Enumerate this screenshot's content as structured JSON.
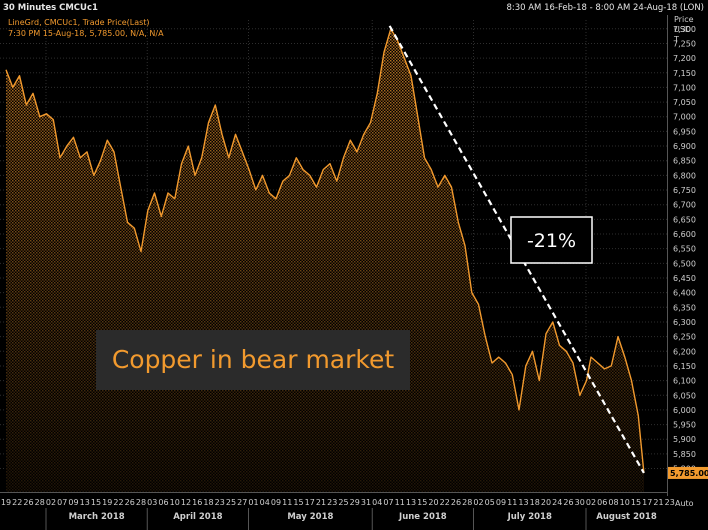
{
  "header": {
    "title": "30 Minutes CMCUc1",
    "range": "8:30 AM 16-Feb-18 - 8:00 AM 24-Aug-18 (LON)"
  },
  "legend": {
    "line1": "LineGrd, CMCUc1, Trade Price(Last)",
    "line2": "7:30 PM 15-Aug-18, 5,785.00, N/A, N/A"
  },
  "axis": {
    "price_title_1": "Price",
    "price_title_2": "USD",
    "price_title_3": "T",
    "auto_label": "Auto"
  },
  "colors": {
    "background": "#000000",
    "line": "#f29a2e",
    "grid": "#2e2e2e",
    "text": "#cfcfcf",
    "box_bg": "#2b2b2b",
    "price_tag_bg": "#f29a2e"
  },
  "chart_data": {
    "type": "area",
    "ylim": [
      5720,
      7330
    ],
    "y_ticks": [
      5800,
      5850,
      5900,
      5950,
      6000,
      6050,
      6100,
      6150,
      6200,
      6250,
      6300,
      6350,
      6400,
      6450,
      6500,
      6550,
      6600,
      6650,
      6700,
      6750,
      6800,
      6850,
      6900,
      6950,
      7000,
      7050,
      7100,
      7150,
      7200,
      7250,
      7300
    ],
    "y_tick_labels": [
      "5,800",
      "5,850",
      "5,900",
      "5,950",
      "6,000",
      "6,050",
      "6,100",
      "6,150",
      "6,200",
      "6,250",
      "6,300",
      "6,350",
      "6,400",
      "6,450",
      "6,500",
      "6,550",
      "6,600",
      "6,650",
      "6,700",
      "6,750",
      "6,800",
      "6,850",
      "6,900",
      "6,950",
      "7,000",
      "7,050",
      "7,100",
      "7,150",
      "7,200",
      "7,250",
      "7,300"
    ],
    "last_price_label": "5,785.00",
    "last_price": 5785,
    "x_day_labels": [
      "19",
      "22",
      "26",
      "28",
      "02",
      "07",
      "09",
      "13",
      "15",
      "19",
      "22",
      "26",
      "28",
      "03",
      "06",
      "10",
      "12",
      "16",
      "18",
      "23",
      "25",
      "27",
      "01",
      "04",
      "09",
      "11",
      "15",
      "17",
      "21",
      "23",
      "25",
      "29",
      "31",
      "04",
      "07",
      "11",
      "13",
      "15",
      "20",
      "22",
      "26",
      "28",
      "02",
      "05",
      "09",
      "11",
      "13",
      "18",
      "20",
      "24",
      "26",
      "30",
      "02",
      "06",
      "08",
      "10",
      "15",
      "17",
      "21",
      "23"
    ],
    "x_months": [
      {
        "label": "March 2018",
        "day_index": 4
      },
      {
        "label": "April 2018",
        "day_index": 13
      },
      {
        "label": "May 2018",
        "day_index": 22
      },
      {
        "label": "June 2018",
        "day_index": 33
      },
      {
        "label": "July 2018",
        "day_index": 42
      },
      {
        "label": "August 2018",
        "day_index": 52
      }
    ],
    "series": [
      {
        "values": [
          [
            0.0,
            7160
          ],
          [
            0.6,
            7100
          ],
          [
            1.2,
            7140
          ],
          [
            1.8,
            7040
          ],
          [
            2.4,
            7080
          ],
          [
            3.0,
            7000
          ],
          [
            3.6,
            7010
          ],
          [
            4.2,
            6990
          ],
          [
            4.8,
            6860
          ],
          [
            5.4,
            6900
          ],
          [
            6.0,
            6930
          ],
          [
            6.6,
            6860
          ],
          [
            7.2,
            6880
          ],
          [
            7.8,
            6800
          ],
          [
            8.4,
            6850
          ],
          [
            9.0,
            6920
          ],
          [
            9.6,
            6880
          ],
          [
            10.2,
            6760
          ],
          [
            10.8,
            6640
          ],
          [
            11.4,
            6620
          ],
          [
            12.0,
            6540
          ],
          [
            12.6,
            6680
          ],
          [
            13.2,
            6740
          ],
          [
            13.8,
            6660
          ],
          [
            14.4,
            6740
          ],
          [
            15.0,
            6720
          ],
          [
            15.6,
            6840
          ],
          [
            16.2,
            6900
          ],
          [
            16.8,
            6800
          ],
          [
            17.4,
            6860
          ],
          [
            18.0,
            6980
          ],
          [
            18.6,
            7040
          ],
          [
            19.2,
            6940
          ],
          [
            19.8,
            6860
          ],
          [
            20.4,
            6940
          ],
          [
            21.0,
            6880
          ],
          [
            21.6,
            6820
          ],
          [
            22.2,
            6750
          ],
          [
            22.8,
            6800
          ],
          [
            23.4,
            6740
          ],
          [
            24.0,
            6720
          ],
          [
            24.6,
            6780
          ],
          [
            25.2,
            6800
          ],
          [
            25.8,
            6860
          ],
          [
            26.4,
            6820
          ],
          [
            27.0,
            6800
          ],
          [
            27.6,
            6760
          ],
          [
            28.2,
            6820
          ],
          [
            28.8,
            6840
          ],
          [
            29.4,
            6780
          ],
          [
            30.0,
            6860
          ],
          [
            30.6,
            6920
          ],
          [
            31.2,
            6880
          ],
          [
            31.8,
            6940
          ],
          [
            32.4,
            6980
          ],
          [
            33.0,
            7080
          ],
          [
            33.6,
            7220
          ],
          [
            34.2,
            7300
          ],
          [
            34.8,
            7260
          ],
          [
            35.4,
            7200
          ],
          [
            36.0,
            7140
          ],
          [
            36.6,
            7000
          ],
          [
            37.2,
            6860
          ],
          [
            37.8,
            6820
          ],
          [
            38.4,
            6760
          ],
          [
            39.0,
            6800
          ],
          [
            39.6,
            6760
          ],
          [
            40.2,
            6640
          ],
          [
            40.8,
            6560
          ],
          [
            41.4,
            6400
          ],
          [
            42.0,
            6360
          ],
          [
            42.6,
            6250
          ],
          [
            43.2,
            6160
          ],
          [
            43.8,
            6180
          ],
          [
            44.4,
            6160
          ],
          [
            45.0,
            6120
          ],
          [
            45.6,
            6000
          ],
          [
            46.2,
            6150
          ],
          [
            46.8,
            6200
          ],
          [
            47.4,
            6100
          ],
          [
            48.0,
            6260
          ],
          [
            48.6,
            6300
          ],
          [
            49.2,
            6220
          ],
          [
            49.8,
            6200
          ],
          [
            50.4,
            6160
          ],
          [
            51.0,
            6050
          ],
          [
            51.6,
            6100
          ],
          [
            52.0,
            6180
          ],
          [
            52.6,
            6160
          ],
          [
            53.2,
            6140
          ],
          [
            53.8,
            6150
          ],
          [
            54.4,
            6250
          ],
          [
            55.0,
            6180
          ],
          [
            55.6,
            6100
          ],
          [
            56.2,
            5980
          ],
          [
            56.7,
            5785
          ]
        ]
      }
    ],
    "annotations": [
      {
        "text": "Copper in bear market"
      },
      {
        "text": "-21%"
      }
    ],
    "trendline": {
      "from": [
        34.1,
        7310
      ],
      "to": [
        56.7,
        5785
      ]
    }
  }
}
